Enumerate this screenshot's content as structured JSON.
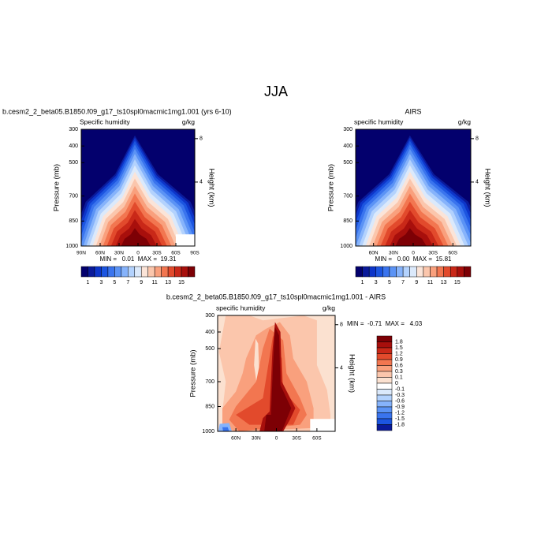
{
  "title": "JJA",
  "chart_data": [
    {
      "type": "contour",
      "title": "b.cesm2_2_beta05.B1850.f09_g17_ts10spl0macmic1mg1.001 (yrs 6-10)",
      "left_string": "Specific humidity",
      "right_string": "g/kg",
      "ylabel": "Pressure (mb)",
      "y2label": "Height (km)",
      "ylim": [
        1000,
        300
      ],
      "yticks": [
        300,
        400,
        500,
        700,
        850,
        1000
      ],
      "y2ticks": [
        8,
        4
      ],
      "xlim": [
        90,
        -90
      ],
      "xticks": [
        {
          "value": 90,
          "label": "90N"
        },
        {
          "value": 60,
          "label": "60N"
        },
        {
          "value": 30,
          "label": "30N"
        },
        0,
        {
          "value": -30,
          "label": "30S"
        },
        {
          "value": -60,
          "label": "60S"
        },
        {
          "value": -90,
          "label": "90S"
        }
      ],
      "stats": "MIN =   0.01  MAX =  19.31",
      "colorbar": {
        "labels": [
          1,
          3,
          5,
          7,
          9,
          11,
          13,
          15
        ],
        "colors": [
          "#03006d",
          "#0a1a9a",
          "#0d35c9",
          "#1c55e0",
          "#3a74ee",
          "#5b93f5",
          "#86b3fb",
          "#b3d2fd",
          "#dbe9fb",
          "#fbe4d8",
          "#fbc6ac",
          "#f9a07d",
          "#f27650",
          "#e24a2c",
          "#c92818",
          "#a80f0c",
          "#7d0005"
        ]
      }
    },
    {
      "type": "contour",
      "title": "AIRS",
      "left_string": "specific humidity",
      "right_string": "g/kg",
      "ylabel": "Pressure (mb)",
      "y2label": "Height (km)",
      "ylim": [
        1000,
        300
      ],
      "yticks": [
        300,
        400,
        500,
        700,
        850,
        1000
      ],
      "y2ticks": [
        8,
        4
      ],
      "xlim": [
        87,
        -87
      ],
      "xticks": [
        {
          "value": 60,
          "label": "60N"
        },
        {
          "value": 30,
          "label": "30N"
        },
        0,
        {
          "value": -30,
          "label": "30S"
        },
        {
          "value": -60,
          "label": "60S"
        }
      ],
      "stats": "MIN =   0.00  MAX =  15.81",
      "colorbar": {
        "labels": [
          1,
          3,
          5,
          7,
          9,
          11,
          13,
          15
        ],
        "colors": [
          "#03006d",
          "#0a1a9a",
          "#0d35c9",
          "#1c55e0",
          "#3a74ee",
          "#5b93f5",
          "#86b3fb",
          "#b3d2fd",
          "#dbe9fb",
          "#fbe4d8",
          "#fbc6ac",
          "#f9a07d",
          "#f27650",
          "#e24a2c",
          "#c92818",
          "#a80f0c",
          "#7d0005"
        ]
      }
    },
    {
      "type": "contour",
      "title": "b.cesm2_2_beta05.B1850.f09_g17_ts10spl0macmic1mg1.001 - AIRS",
      "left_string": "specific humidity",
      "right_string": "g/kg",
      "ylabel": "Pressure (mb)",
      "y2label": "Height (km)",
      "ylim": [
        1000,
        300
      ],
      "yticks": [
        300,
        400,
        500,
        700,
        850,
        1000
      ],
      "y2ticks": [
        8,
        4
      ],
      "xlim": [
        87,
        -87
      ],
      "xticks": [
        {
          "value": 60,
          "label": "60N"
        },
        {
          "value": 30,
          "label": "30N"
        },
        0,
        {
          "value": -30,
          "label": "30S"
        },
        {
          "value": -60,
          "label": "60S"
        }
      ],
      "stats": "MIN =  -0.71  MAX =   4.03",
      "colorbar": {
        "labels": [
          1.8,
          1.5,
          1.2,
          0.9,
          0.6,
          0.3,
          0.1,
          0,
          -0.1,
          -0.3,
          -0.6,
          -0.9,
          -1.2,
          -1.5,
          -1.8
        ],
        "colors": [
          "#7d0005",
          "#a80f0c",
          "#c92818",
          "#e24a2c",
          "#f27650",
          "#f9a07d",
          "#fbc6ac",
          "#fbe1d0",
          "#ffffff",
          "#dbe9fb",
          "#b3d2fd",
          "#86b3fb",
          "#5b93f5",
          "#3a74ee",
          "#1c55e0",
          "#0a1a9a"
        ]
      }
    }
  ]
}
